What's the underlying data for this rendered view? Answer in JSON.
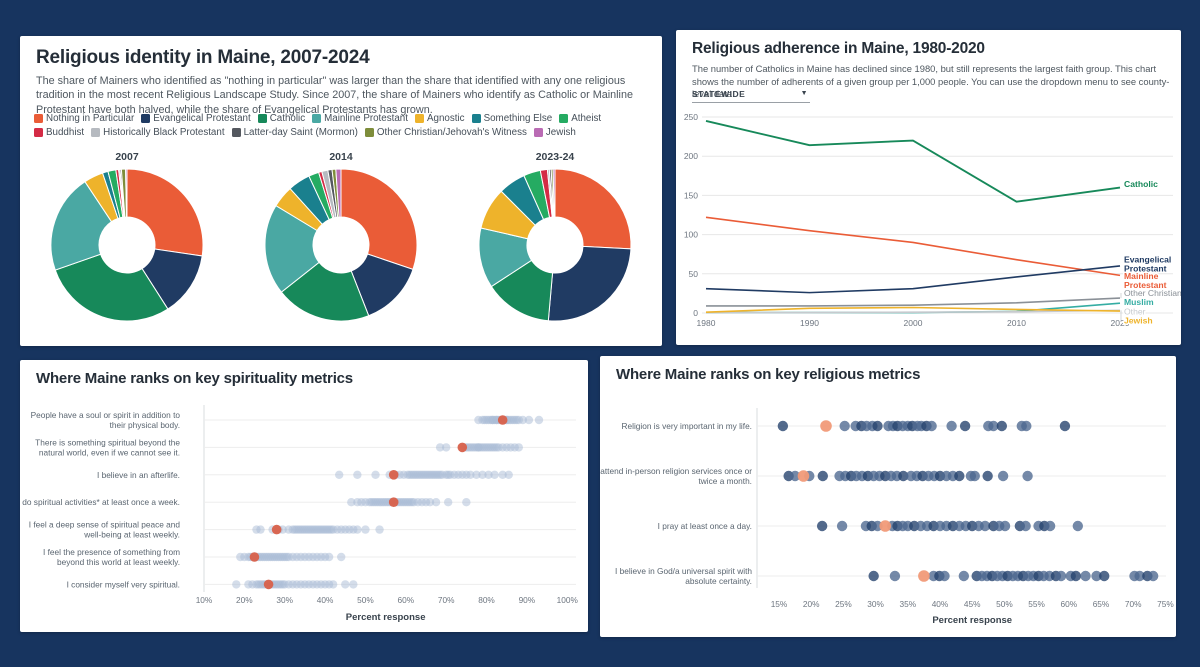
{
  "identity_panel": {
    "title": "Religious identity in Maine, 2007-2024",
    "description": "The share of Mainers who identified as \"nothing in particular\" was larger than the share that identified with any one religious tradition in the most recent Religious Landscape Study. Since 2007, the share of Mainers who identify as Catholic or Mainline Protestant have both halved, while the share of Evangelical Protestants has grown.",
    "legend": [
      {
        "label": "Nothing in Particular",
        "color": "#EA5C37"
      },
      {
        "label": "Evangelical Protestant",
        "color": "#203B63"
      },
      {
        "label": "Catholic",
        "color": "#17895A"
      },
      {
        "label": "Mainline Protestant",
        "color": "#4AA8A3"
      },
      {
        "label": "Agnostic",
        "color": "#EEB32B"
      },
      {
        "label": "Something Else",
        "color": "#1A808E"
      },
      {
        "label": "Atheist",
        "color": "#25AB62"
      },
      {
        "label": "Buddhist",
        "color": "#D42B45"
      },
      {
        "label": "Historically Black Protestant",
        "color": "#B6BAC0"
      },
      {
        "label": "Latter-day Saint (Mormon)",
        "color": "#54585F"
      },
      {
        "label": "Other Christian/Jehovah's Witness",
        "color": "#7E8D3B"
      },
      {
        "label": "Jewish",
        "color": "#BA6BB4"
      }
    ],
    "chart_data": {
      "type": "pie",
      "categories": [
        "Nothing in Particular",
        "Evangelical Protestant",
        "Catholic",
        "Mainline Protestant",
        "Agnostic",
        "Something Else",
        "Atheist",
        "Buddhist",
        "Historically Black Protestant",
        "Latter-day Saint (Mormon)",
        "Other Christian/Jehovah's Witness",
        "Jewish"
      ],
      "pies": [
        {
          "label": "2007",
          "values": [
            27.8,
            13.9,
            29.2,
            21.4,
            4.2,
            1.2,
            1.7,
            0.6,
            0.3,
            0.3,
            0.9,
            0.3
          ]
        },
        {
          "label": "2014",
          "values": [
            30.5,
            14.0,
            20.5,
            19.5,
            4.7,
            4.8,
            2.2,
            0.7,
            1.3,
            0.9,
            0.8,
            1.1
          ]
        },
        {
          "label": "2023-24",
          "values": [
            25.8,
            25.6,
            14.4,
            12.8,
            8.9,
            5.8,
            3.6,
            1.5,
            0.4,
            0.4,
            0.4,
            0.4
          ]
        }
      ]
    }
  },
  "adherence_panel": {
    "title": "Religious adherence in Maine, 1980-2020",
    "description": "The number of Catholics in Maine has declined since 1980, but still represents the largest faith group. This chart shows the number of adherents of a given group per 1,000 people. You can use the dropdown menu to see county-level data.",
    "dropdown_label": "STATEWIDE",
    "chart_data": {
      "type": "line",
      "x": [
        1980,
        1990,
        2000,
        2010,
        2020
      ],
      "ylim": [
        0,
        250
      ],
      "yticks": [
        0,
        50,
        100,
        150,
        200,
        250
      ],
      "grid": true,
      "legend_position": "right-labels",
      "series": [
        {
          "name": "Catholic",
          "color": "#17895A",
          "bold": true,
          "label_lines": [
            "Catholic"
          ],
          "values": [
            245,
            214,
            220,
            142,
            160
          ]
        },
        {
          "name": "Mainline Protestant",
          "color": "#EA5C37",
          "bold": true,
          "label_lines": [
            "Mainline",
            "Protestant"
          ],
          "values": [
            122,
            105,
            90,
            68,
            48
          ]
        },
        {
          "name": "Evangelical Protestant",
          "color": "#203B63",
          "bold": true,
          "label_lines": [
            "Evangelical",
            "Protestant"
          ],
          "values": [
            31,
            26,
            31,
            46,
            60
          ]
        },
        {
          "name": "Other Christian",
          "color": "#8A9097",
          "bold": false,
          "label_lines": [
            "Other Christian"
          ],
          "values": [
            9,
            9,
            10,
            13,
            19
          ]
        },
        {
          "name": "Muslim",
          "color": "#35ADA3",
          "bold": true,
          "label_lines": [
            "Muslim"
          ],
          "values": [
            0.5,
            0.5,
            0.5,
            2,
            12.5
          ]
        },
        {
          "name": "Other",
          "color": "#C6CACE",
          "bold": false,
          "label_lines": [
            "Other"
          ],
          "values": [
            0.5,
            0.5,
            1,
            1.5,
            3.5
          ]
        },
        {
          "name": "Jewish",
          "color": "#EEB32B",
          "bold": true,
          "label_lines": [
            "Jewish"
          ],
          "values": [
            1,
            6,
            7,
            4.5,
            2.5
          ]
        }
      ]
    }
  },
  "spirituality_panel": {
    "title": "Where Maine ranks on key spirituality metrics",
    "xlabel": "Percent response",
    "chart_data": {
      "type": "dot",
      "axis": {
        "min": 10,
        "max": 100,
        "step": 10,
        "suffix": "%"
      },
      "maine_color": "#D8604A",
      "dot_color": "#A9BCD6",
      "rows": [
        {
          "label_lines": [
            "People have a soul or spirit in addition to",
            "their physical body."
          ],
          "maine": 84,
          "values": [
            78,
            79,
            79.5,
            80,
            80.5,
            81,
            81.5,
            81.5,
            82,
            82.5,
            82.5,
            83,
            83.5,
            84.5,
            85,
            85,
            85.5,
            86,
            86.5,
            87,
            87.5,
            88,
            89,
            90.5,
            93
          ]
        },
        {
          "label_lines": [
            "There is something spiritual beyond the",
            "natural world, even if we cannot see it."
          ],
          "maine": 74,
          "values": [
            68.5,
            70,
            74.5,
            75,
            75.5,
            76,
            76.5,
            77,
            77.5,
            78,
            78,
            78.5,
            79,
            79.5,
            80,
            80.5,
            81,
            81.5,
            82,
            82.5,
            83,
            84,
            85,
            86,
            87,
            88
          ]
        },
        {
          "label_lines": [
            "I believe in an afterlife."
          ],
          "maine": 57,
          "values": [
            43.5,
            48,
            52.5,
            56,
            57.5,
            58.5,
            59.5,
            60.5,
            61,
            61.5,
            62,
            62.5,
            63,
            63.5,
            64,
            64.5,
            65,
            65.5,
            66,
            66.5,
            67,
            67.5,
            68,
            68.5,
            69,
            70,
            70.5,
            71,
            72,
            73,
            74,
            75,
            76,
            77.5,
            79,
            80.5,
            82,
            84,
            85.5
          ]
        },
        {
          "label_lines": [
            "I do spiritual activities* at least once a week."
          ],
          "maine": 57,
          "values": [
            46.5,
            48,
            49,
            50,
            51,
            51.5,
            52,
            52.5,
            53,
            53.5,
            54,
            54.5,
            55,
            55.5,
            56,
            56.5,
            57.5,
            58,
            58.5,
            59,
            59.5,
            60,
            60.5,
            61,
            61.5,
            62,
            63,
            64,
            65,
            66,
            67.5,
            70.5,
            75
          ]
        },
        {
          "label_lines": [
            "I feel a deep sense of spiritual peace and",
            "well-being at least weekly."
          ],
          "maine": 28,
          "values": [
            23,
            24,
            27,
            28.5,
            29.5,
            31,
            32,
            32.5,
            33,
            33.5,
            34,
            34.5,
            35,
            35.5,
            36,
            36.5,
            37,
            37.5,
            38,
            38.5,
            39,
            39.5,
            40,
            40.5,
            41,
            41.5,
            42,
            43,
            44,
            45,
            46,
            47,
            48,
            50,
            53.5
          ]
        },
        {
          "label_lines": [
            "I feel the presence of something from",
            "beyond this world at least weekly."
          ],
          "maine": 22.5,
          "values": [
            19,
            20,
            21,
            21.5,
            22,
            23,
            23.5,
            24,
            24.5,
            25,
            25.5,
            26,
            26.5,
            27,
            27.5,
            28,
            28.5,
            29,
            29.5,
            30,
            30.5,
            31,
            32,
            33,
            34,
            35,
            36,
            37,
            38,
            39,
            40,
            41,
            44
          ]
        },
        {
          "label_lines": [
            "I consider myself very spiritual."
          ],
          "maine": 26,
          "values": [
            18,
            21,
            22,
            23,
            23.5,
            24,
            24.5,
            25,
            25.5,
            26.5,
            27,
            27.5,
            28,
            28.5,
            29,
            29.5,
            30,
            31,
            32,
            33,
            34,
            35,
            36,
            37,
            38,
            39,
            40,
            41,
            42,
            45,
            47
          ]
        }
      ]
    }
  },
  "religious_panel": {
    "title": "Where Maine ranks on key religious metrics",
    "xlabel": "Percent response",
    "chart_data": {
      "type": "dot",
      "axis": {
        "min": 15,
        "max": 75,
        "step": 5,
        "suffix": "%"
      },
      "maine_color": "#F19A78",
      "dot_color": "#4D688F",
      "dot_color_dark": "#23406B",
      "rows": [
        {
          "label_lines": [
            "Religion is very important in my life."
          ],
          "maine": 22.3,
          "values": [
            15.6,
            25.2,
            26.9,
            27.8,
            28.6,
            29.5,
            30.3,
            32,
            32.7,
            33.4,
            34.2,
            35,
            35.7,
            36.5,
            37.1,
            37.9,
            38.7,
            41.8,
            43.9,
            47.5,
            48.3,
            49.6,
            52.7,
            53.4,
            59.4
          ]
        },
        {
          "label_lines": [
            "I attend in-person religion services once or",
            "twice a month."
          ],
          "maine": 18.8,
          "values": [
            16.5,
            17.5,
            19.7,
            21.8,
            24.4,
            25.3,
            26.2,
            27,
            27.9,
            28.8,
            29.7,
            30.6,
            31.5,
            32.4,
            33.3,
            34.3,
            35.5,
            36.4,
            37.3,
            38.2,
            39.1,
            40,
            41,
            42,
            43,
            44.8,
            45.4,
            47.4,
            49.8,
            53.6
          ]
        },
        {
          "label_lines": [
            "I pray at least once a day."
          ],
          "maine": 31.5,
          "values": [
            21.7,
            24.8,
            28.5,
            29.4,
            30.3,
            32.6,
            33.4,
            34.2,
            35,
            36,
            37,
            38,
            39,
            40,
            41,
            42,
            43,
            44,
            45,
            46,
            47,
            48.3,
            49.2,
            50.1,
            52.4,
            53.3,
            55.3,
            56.2,
            57.1,
            61.4
          ]
        },
        {
          "label_lines": [
            "I believe in God/a universal spirit with",
            "absolute certainty."
          ],
          "maine": 37.5,
          "values": [
            29.7,
            33,
            39,
            39.9,
            40.7,
            43.7,
            45.7,
            46.5,
            47.3,
            48.1,
            48.9,
            49.7,
            50.5,
            51.3,
            52.1,
            52.9,
            53.7,
            54.5,
            55.3,
            56.1,
            57,
            58,
            58.8,
            60.3,
            61.1,
            62.6,
            64.3,
            65.5,
            70.2,
            71,
            72.2,
            73.1
          ]
        }
      ]
    }
  }
}
